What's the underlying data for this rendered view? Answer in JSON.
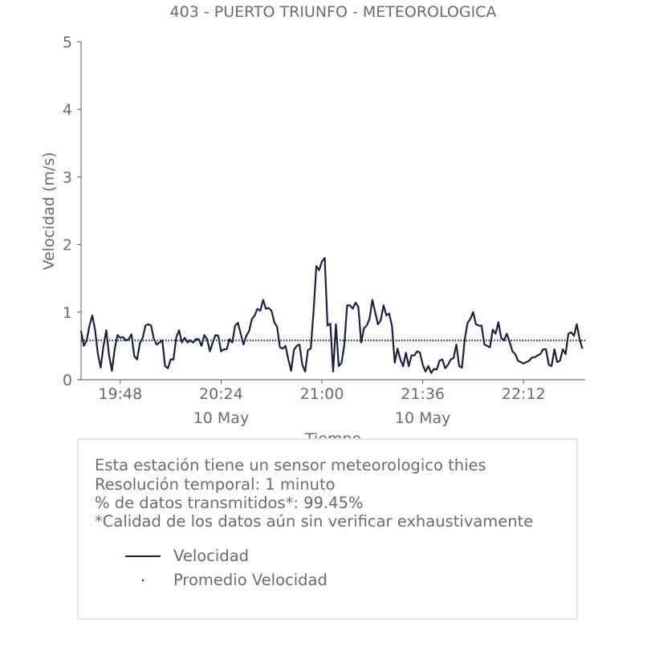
{
  "chart_data": {
    "type": "line",
    "title": "403 - PUERTO TRIUNFO - METEOROLOGICA",
    "xlabel": "Tiempo",
    "ylabel": "Velocidad (m/s)",
    "ylim": [
      0,
      5
    ],
    "yticks": [
      "0",
      "1",
      "2",
      "3",
      "4",
      "5"
    ],
    "x_start": "19:34",
    "x_end": "22:34",
    "xticks": [
      "19:48",
      "20:24",
      "21:00",
      "21:36",
      "22:12"
    ],
    "xticks_date": [
      "",
      "10 May",
      "",
      "10 May",
      ""
    ],
    "grid": false,
    "series": [
      {
        "name": "Velocidad",
        "color": "#1b1f45",
        "style": "solid",
        "x_step_minutes": 1,
        "values": [
          0.72,
          0.5,
          0.58,
          0.8,
          0.95,
          0.74,
          0.38,
          0.18,
          0.5,
          0.73,
          0.36,
          0.13,
          0.45,
          0.66,
          0.62,
          0.63,
          0.58,
          0.6,
          0.67,
          0.35,
          0.3,
          0.54,
          0.62,
          0.8,
          0.82,
          0.8,
          0.6,
          0.52,
          0.55,
          0.58,
          0.2,
          0.17,
          0.3,
          0.3,
          0.63,
          0.73,
          0.55,
          0.62,
          0.55,
          0.58,
          0.55,
          0.6,
          0.6,
          0.5,
          0.66,
          0.6,
          0.42,
          0.55,
          0.66,
          0.65,
          0.42,
          0.45,
          0.45,
          0.6,
          0.55,
          0.8,
          0.84,
          0.68,
          0.52,
          0.65,
          0.72,
          0.9,
          0.95,
          1.05,
          1.02,
          1.18,
          1.05,
          1.06,
          1.02,
          0.85,
          0.78,
          0.48,
          0.46,
          0.5,
          0.3,
          0.13,
          0.44,
          0.5,
          0.52,
          0.22,
          0.12,
          0.44,
          0.46,
          1.0,
          1.68,
          1.62,
          1.75,
          1.8,
          0.8,
          0.83,
          0.12,
          0.82,
          0.2,
          0.25,
          0.52,
          1.1,
          1.1,
          1.05,
          1.14,
          1.08,
          0.55,
          0.76,
          0.8,
          0.9,
          1.18,
          1.0,
          0.82,
          0.88,
          1.1,
          0.95,
          0.98,
          0.8,
          0.25,
          0.46,
          0.3,
          0.2,
          0.4,
          0.2,
          0.36,
          0.36,
          0.42,
          0.4,
          0.22,
          0.12,
          0.2,
          0.1,
          0.16,
          0.15,
          0.28,
          0.3,
          0.17,
          0.22,
          0.3,
          0.32,
          0.52,
          0.2,
          0.18,
          0.6,
          0.84,
          0.9,
          1.0,
          0.82,
          0.8,
          0.8,
          0.52,
          0.5,
          0.48,
          0.74,
          0.68,
          0.85,
          0.62,
          0.58,
          0.68,
          0.56,
          0.42,
          0.38,
          0.28,
          0.26,
          0.24,
          0.26,
          0.28,
          0.33,
          0.33,
          0.36,
          0.38,
          0.45,
          0.45,
          0.22,
          0.2,
          0.45,
          0.26,
          0.28,
          0.45,
          0.38,
          0.68,
          0.7,
          0.65,
          0.82,
          0.6,
          0.46
        ]
      },
      {
        "name": "Promedio Velocidad",
        "color": "#1b1f45",
        "style": "dotted",
        "constant": 0.58
      }
    ]
  },
  "info": {
    "line1": "Esta estación tiene un sensor meteorologico thies",
    "line2": "Resolución temporal: 1 minuto",
    "line3": "% de datos transmitidos*: 99.45%",
    "line4": "*Calidad de los datos aún sin verificar exhaustivamente"
  },
  "legend": {
    "item1": "Velocidad",
    "item2": "Promedio Velocidad"
  }
}
